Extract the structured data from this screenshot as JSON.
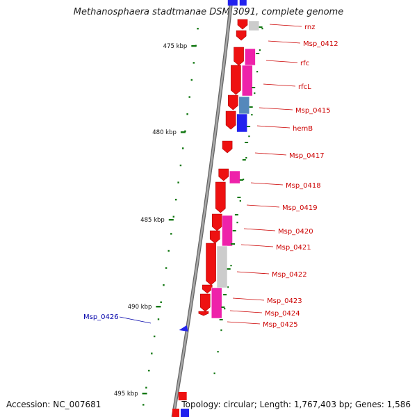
{
  "title": "Methanosphaera stadtmanae DSM 3091, complete genome",
  "accession": "Accession: NC_007681",
  "genome_info": "Topology: circular; Length: 1,767,403 bp; Genes: 1,586",
  "colors": {
    "forward_cds": "#ee1111",
    "rna_or_misc": "#ee22aa",
    "unclassified": "#cccccc",
    "blue_feature": "#2222ee",
    "steelblue_feature": "#5588bb",
    "scale_tick": "#117711",
    "backbone": "#888888",
    "label_red": "#cc0000",
    "label_blue": "#0000aa"
  },
  "scale_ticks": [
    "475 kbp",
    "480 kbp",
    "485 kbp",
    "490 kbp",
    "495 kbp"
  ],
  "gene_labels": [
    {
      "text": "rnz",
      "color": "red"
    },
    {
      "text": "Msp_0412",
      "color": "red"
    },
    {
      "text": "rfc",
      "color": "red"
    },
    {
      "text": "rfcL",
      "color": "red"
    },
    {
      "text": "Msp_0415",
      "color": "red"
    },
    {
      "text": "hemB",
      "color": "red"
    },
    {
      "text": "Msp_0417",
      "color": "red"
    },
    {
      "text": "Msp_0418",
      "color": "red"
    },
    {
      "text": "Msp_0419",
      "color": "red"
    },
    {
      "text": "Msp_0420",
      "color": "red"
    },
    {
      "text": "Msp_0421",
      "color": "red"
    },
    {
      "text": "Msp_0422",
      "color": "red"
    },
    {
      "text": "Msp_0423",
      "color": "red"
    },
    {
      "text": "Msp_0424",
      "color": "red"
    },
    {
      "text": "Msp_0425",
      "color": "red"
    },
    {
      "text": "Msp_0426",
      "color": "blue"
    }
  ]
}
